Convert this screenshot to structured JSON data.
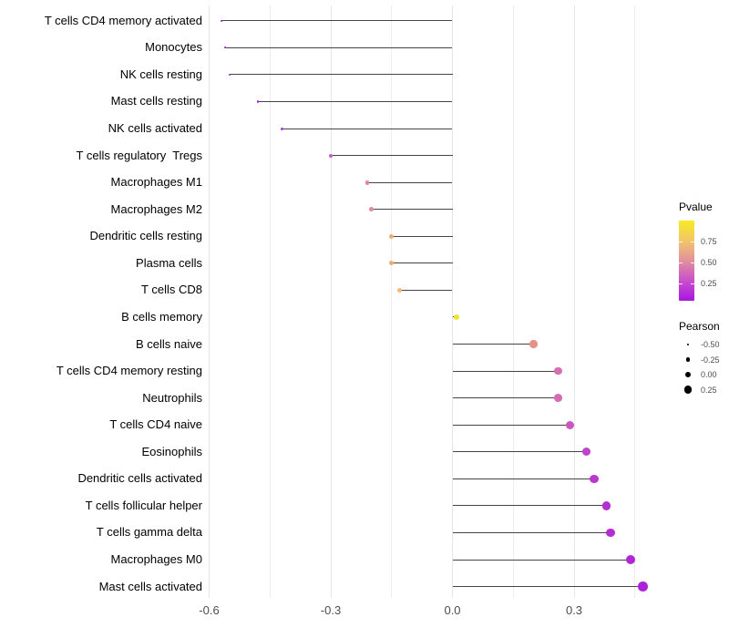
{
  "chart_data": {
    "type": "scatter",
    "subtype": "lollipop",
    "orientation": "horizontal",
    "title": "",
    "xlabel": "",
    "ylabel": "",
    "xlim": [
      -0.63,
      0.52
    ],
    "grid": "vertical-only",
    "legend_position": "right",
    "x_ticks": [
      {
        "label": "-0.6",
        "value": -0.6
      },
      {
        "label": "-0.3",
        "value": -0.3
      },
      {
        "label": "0.0",
        "value": 0.0
      },
      {
        "label": "0.3",
        "value": 0.3
      }
    ],
    "minor_grid_values": [
      -0.45,
      -0.15,
      0.15,
      0.45
    ],
    "categories": [
      "T cells CD4 memory activated",
      "Monocytes",
      "NK cells resting",
      "Mast cells resting",
      "NK cells activated",
      "T cells regulatory  Tregs",
      "Macrophages M1",
      "Macrophages M2",
      "Dendritic cells resting",
      "Plasma cells",
      "T cells CD8",
      "B cells memory",
      "B cells naive",
      "T cells CD4 memory resting",
      "Neutrophils",
      "T cells CD4 naive",
      "Eosinophils",
      "Dendritic cells activated",
      "T cells follicular helper",
      "T cells gamma delta",
      "Macrophages M0",
      "Mast cells activated"
    ],
    "series": [
      {
        "name": "Pearson",
        "values": [
          -0.57,
          -0.56,
          -0.55,
          -0.48,
          -0.42,
          -0.3,
          -0.21,
          -0.2,
          -0.15,
          -0.15,
          -0.13,
          0.01,
          0.2,
          0.26,
          0.26,
          0.29,
          0.33,
          0.35,
          0.38,
          0.39,
          0.44,
          0.47
        ]
      }
    ],
    "point_colors": [
      "#9b1cdb",
      "#9e21da",
      "#a126d8",
      "#a734d3",
      "#ac3ed0",
      "#c45fc4",
      "#dd8b96",
      "#dd8b96",
      "#efac72",
      "#efac72",
      "#f2b876",
      "#f2e32b",
      "#e69086",
      "#d66fb0",
      "#d66bb4",
      "#c956c2",
      "#be44cc",
      "#bb38d0",
      "#b530d3",
      "#b32cd4",
      "#af27d6",
      "#ab21d8"
    ],
    "legends": {
      "color": {
        "title": "Pvalue",
        "ticks": [
          {
            "label": "0.75",
            "frac_from_top": 0.26
          },
          {
            "label": "0.50",
            "frac_from_top": 0.52
          },
          {
            "label": "0.25",
            "frac_from_top": 0.78
          }
        ],
        "gradient_stops_top_to_bottom": [
          "#f8eb21",
          "#f2c669",
          "#e2909e",
          "#c94fcb",
          "#a816e0"
        ]
      },
      "size": {
        "title": "Pearson",
        "entries": [
          {
            "label": "-0.50",
            "value": -0.5
          },
          {
            "label": "-0.25",
            "value": -0.25
          },
          {
            "label": "0.00",
            "value": 0.0
          },
          {
            "label": "0.25",
            "value": 0.25
          }
        ]
      }
    },
    "stem_color": "#454545",
    "baseline_value": 0.0
  }
}
